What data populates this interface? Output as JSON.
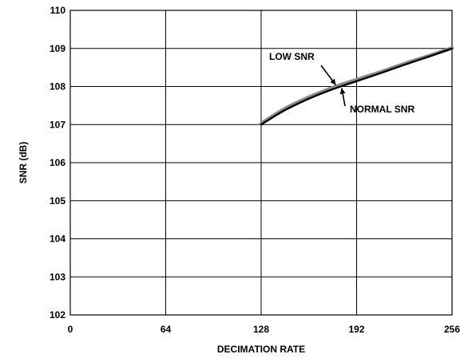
{
  "chart_data": {
    "type": "line",
    "xlabel": "DECIMATION RATE",
    "ylabel": "SNR (dB)",
    "xlim": [
      0,
      256
    ],
    "ylim": [
      102,
      110
    ],
    "xticks": [
      0,
      64,
      128,
      192,
      256
    ],
    "yticks": [
      102,
      103,
      104,
      105,
      106,
      107,
      108,
      109,
      110
    ],
    "grid": true,
    "series": [
      {
        "name": "LOW SNR",
        "color": "#8c8c8c",
        "x": [
          128,
          144,
          160,
          176,
          192,
          208,
          224,
          240,
          256
        ],
        "y": [
          107.03,
          107.42,
          107.72,
          107.97,
          108.18,
          108.38,
          108.6,
          108.8,
          109.01
        ]
      },
      {
        "name": "NORMAL SNR",
        "color": "#000000",
        "x": [
          128,
          144,
          160,
          176,
          192,
          208,
          224,
          240,
          256
        ],
        "y": [
          107.0,
          107.38,
          107.68,
          107.93,
          108.14,
          108.35,
          108.57,
          108.78,
          109.0
        ]
      }
    ],
    "annotations": [
      {
        "text": "LOW SNR",
        "series": "LOW SNR"
      },
      {
        "text": "NORMAL SNR",
        "series": "NORMAL SNR"
      }
    ]
  }
}
